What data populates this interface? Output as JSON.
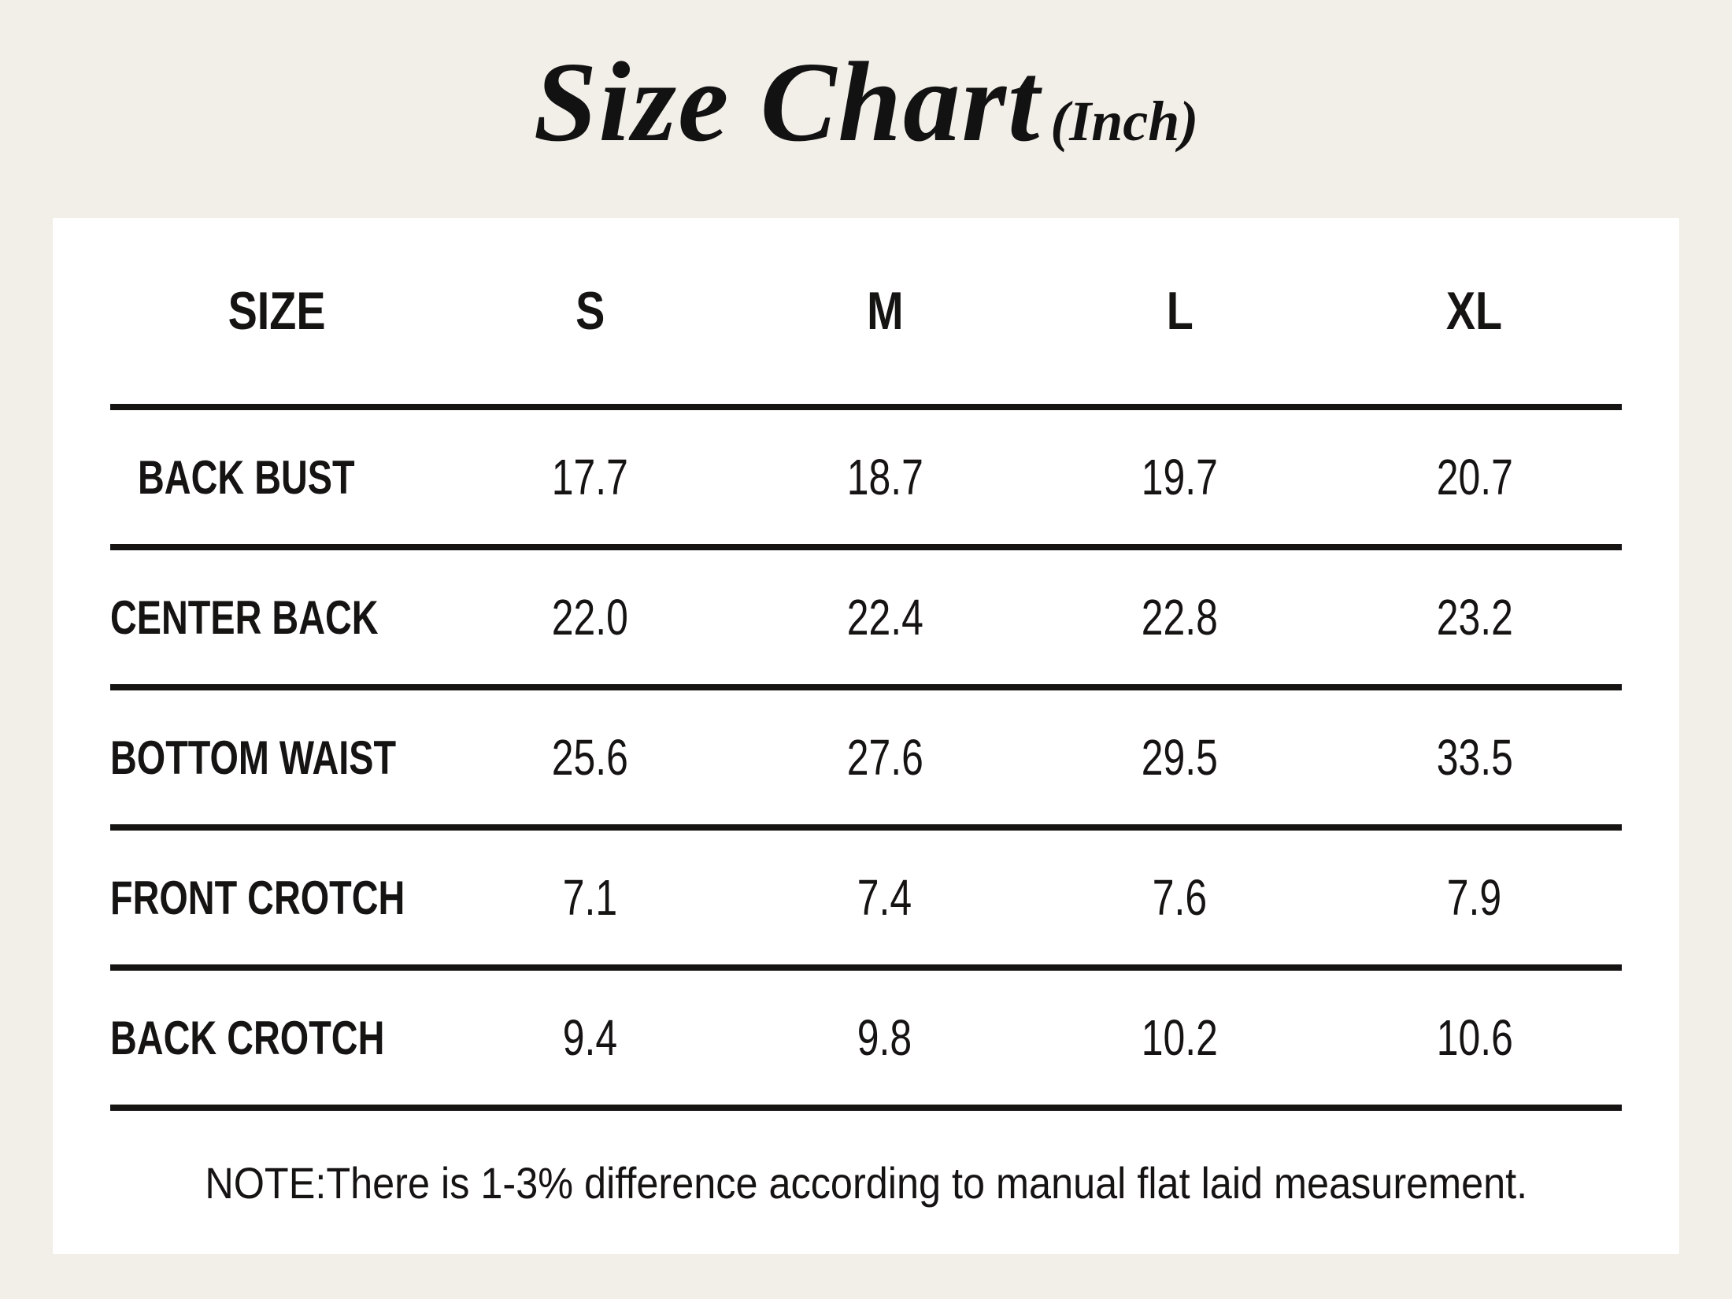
{
  "title": {
    "main": "Size Chart",
    "unit": "(Inch)"
  },
  "table": {
    "columns": [
      "SIZE",
      "S",
      "M",
      "L",
      "XL"
    ],
    "rows": [
      {
        "label": "BACK BUST",
        "values": [
          "17.7",
          "18.7",
          "19.7",
          "20.7"
        ]
      },
      {
        "label": "CENTER BACK",
        "values": [
          "22.0",
          "22.4",
          "22.8",
          "23.2"
        ]
      },
      {
        "label": "BOTTOM WAIST",
        "values": [
          "25.6",
          "27.6",
          "29.5",
          "33.5"
        ]
      },
      {
        "label": "FRONT CROTCH",
        "values": [
          "7.1",
          "7.4",
          "7.6",
          "7.9"
        ]
      },
      {
        "label": "BACK CROTCH",
        "values": [
          "9.4",
          "9.8",
          "10.2",
          "10.6"
        ]
      }
    ]
  },
  "note": "NOTE:There is 1-3% difference according to manual flat laid measurement.",
  "colors": {
    "background": "#f2eee8",
    "card": "#ffffff",
    "text": "#161413",
    "rule": "#161413"
  },
  "chart_data": {
    "type": "table",
    "title": "Size Chart (Inch)",
    "columns": [
      "SIZE",
      "S",
      "M",
      "L",
      "XL"
    ],
    "rows": [
      [
        "BACK BUST",
        17.7,
        18.7,
        19.7,
        20.7
      ],
      [
        "CENTER BACK",
        22.0,
        22.4,
        22.8,
        23.2
      ],
      [
        "BOTTOM WAIST",
        25.6,
        27.6,
        29.5,
        33.5
      ],
      [
        "FRONT CROTCH",
        7.1,
        7.4,
        7.6,
        7.9
      ],
      [
        "BACK CROTCH",
        9.4,
        9.8,
        10.2,
        10.6
      ]
    ],
    "note": "NOTE:There is 1-3% difference according to manual flat laid measurement.",
    "unit": "Inch"
  }
}
